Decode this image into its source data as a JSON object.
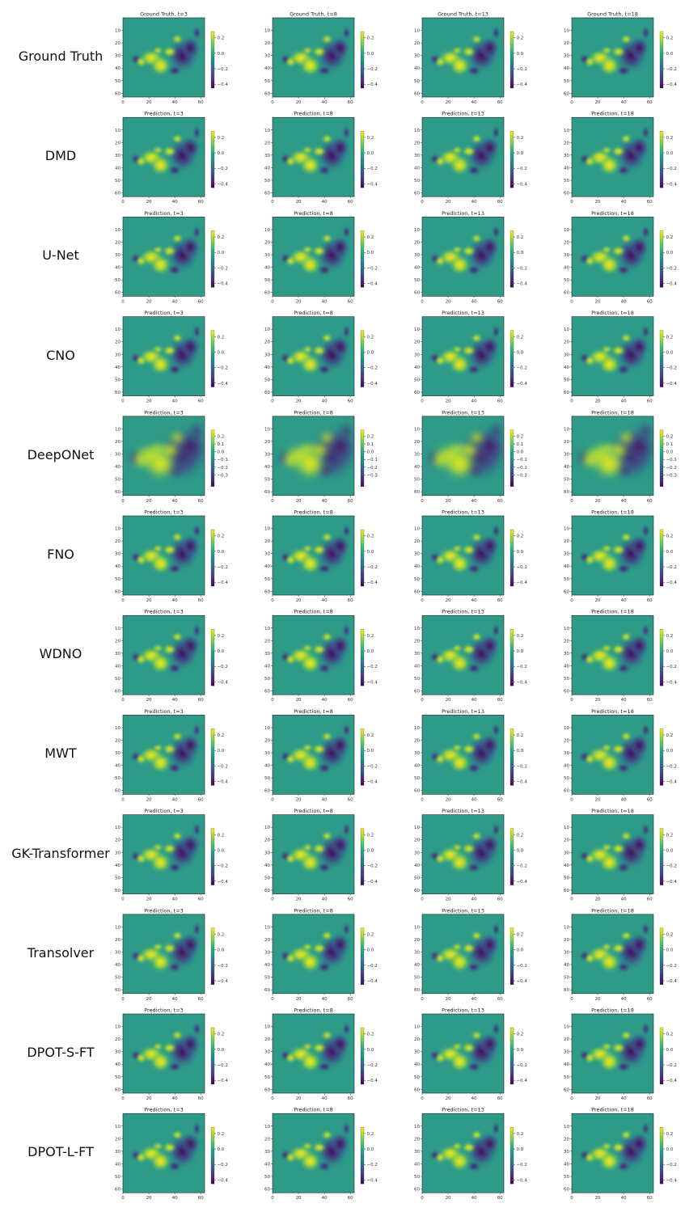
{
  "figure": {
    "colors": {
      "viridis": [
        "#440154",
        "#482475",
        "#414487",
        "#355f8d",
        "#2a788e",
        "#21918c",
        "#22a884",
        "#44bf70",
        "#7ad151",
        "#bddf26",
        "#fde725"
      ],
      "background_field": "#2e9b88"
    }
  },
  "rows": [
    {
      "label": "Ground Truth",
      "title_prefix": "Ground Truth",
      "smooth": false
    },
    {
      "label": "DMD",
      "title_prefix": "Prediction",
      "smooth": false
    },
    {
      "label": "U-Net",
      "title_prefix": "Prediction",
      "smooth": false
    },
    {
      "label": "CNO",
      "title_prefix": "Prediction",
      "smooth": false
    },
    {
      "label": "DeepONet",
      "title_prefix": "Prediction",
      "smooth": true
    },
    {
      "label": "FNO",
      "title_prefix": "Prediction",
      "smooth": false
    },
    {
      "label": "WDNO",
      "title_prefix": "Prediction",
      "smooth": false
    },
    {
      "label": "MWT",
      "title_prefix": "Prediction",
      "smooth": false
    },
    {
      "label": "GK-Transformer",
      "title_prefix": "Prediction",
      "smooth": false
    },
    {
      "label": "Transolver",
      "title_prefix": "Prediction",
      "smooth": false
    },
    {
      "label": "DPOT-S-FT",
      "title_prefix": "Prediction",
      "smooth": false
    },
    {
      "label": "DPOT-L-FT",
      "title_prefix": "Prediction",
      "smooth": false
    }
  ],
  "chart_data": {
    "type": "heatmap",
    "grid": "12 rows x 4 columns of heatmap panels",
    "timesteps": [
      "t=3",
      "t=8",
      "t=13",
      "t=18"
    ],
    "x_ticks": [
      "0",
      "20",
      "40",
      "60"
    ],
    "y_ticks": [
      "10",
      "20",
      "30",
      "40",
      "50",
      "60"
    ],
    "x_range": [
      0,
      63
    ],
    "y_range": [
      0,
      63
    ],
    "colorbar_ticks_standard": [
      "0.2",
      "0.0",
      "−0.2",
      "−0.4"
    ],
    "colorbar_ticks_deeponet": [
      "0.2",
      "0.1",
      "0.0",
      "−0.1",
      "−0.2",
      "−0.3"
    ],
    "colorbar_range": [
      -0.45,
      0.28
    ],
    "colormap": "viridis"
  }
}
